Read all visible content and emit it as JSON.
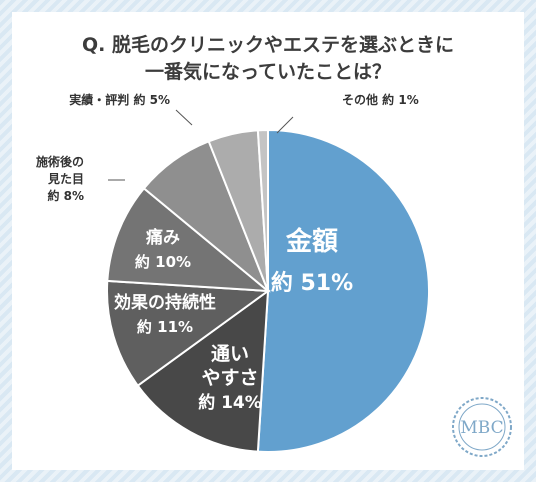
{
  "title": {
    "line1": "Q. 脱毛のクリニックやエステを選ぶときに",
    "line2": "一番気になっていたことは？"
  },
  "colors": {
    "background_stripe": "#d9e8f3",
    "slice_main": "#62a0cf",
    "logo": "#7fa8c8"
  },
  "logo": {
    "text": "MBC"
  },
  "chart_data": {
    "type": "pie",
    "slices": [
      {
        "label_lines": [
          "金額"
        ],
        "value_label": "約 51%",
        "value": 51,
        "color": "#62a0cf"
      },
      {
        "label_lines": [
          "通い",
          "やすさ"
        ],
        "value_label": "約 14%",
        "value": 14,
        "color": "#484848"
      },
      {
        "label_lines": [
          "効果の持続性"
        ],
        "value_label": "約 11%",
        "value": 11,
        "color": "#5f5f5f"
      },
      {
        "label_lines": [
          "痛み"
        ],
        "value_label": "約 10%",
        "value": 10,
        "color": "#747474"
      },
      {
        "label_lines": [
          "施術後の",
          "見た目"
        ],
        "value_label": "約 8%",
        "value": 8,
        "color": "#8f8f8f"
      },
      {
        "label_lines": [
          "実績・評判"
        ],
        "value_label": "約 5%",
        "value": 5,
        "color": "#acacac"
      },
      {
        "label_lines": [
          "その他"
        ],
        "value_label": "約 1%",
        "value": 1,
        "color": "#c4c4c4"
      }
    ]
  }
}
